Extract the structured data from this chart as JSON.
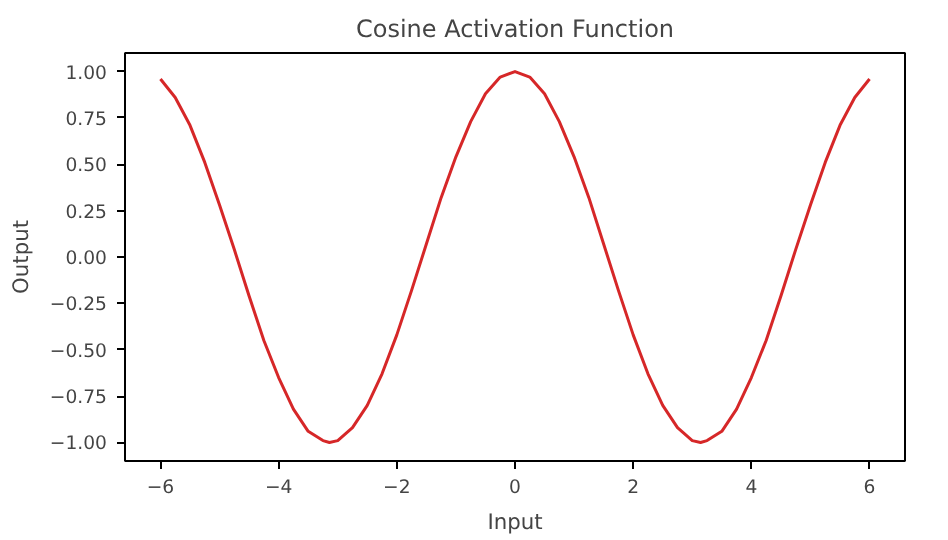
{
  "chart_data": {
    "type": "line",
    "title": "Cosine Activation Function",
    "xlabel": "Input",
    "ylabel": "Output",
    "x": [
      -6,
      -5.75,
      -5.5,
      -5.25,
      -5,
      -4.75,
      -4.5,
      -4.25,
      -4,
      -3.75,
      -3.5,
      -3.25,
      -3.14,
      -3,
      -2.75,
      -2.5,
      -2.25,
      -2,
      -1.75,
      -1.5,
      -1.25,
      -1,
      -0.75,
      -0.5,
      -0.25,
      0,
      0.25,
      0.5,
      0.75,
      1,
      1.25,
      1.5,
      1.75,
      2,
      2.25,
      2.5,
      2.75,
      3,
      3.14,
      3.25,
      3.5,
      3.75,
      4,
      4.25,
      4.5,
      4.75,
      5,
      5.25,
      5.5,
      5.75,
      6
    ],
    "series": [
      {
        "color": "#d62728",
        "values": [
          0.96,
          0.86,
          0.71,
          0.51,
          0.28,
          0.04,
          -0.21,
          -0.45,
          -0.65,
          -0.82,
          -0.94,
          -0.99,
          -1.0,
          -0.99,
          -0.92,
          -0.8,
          -0.63,
          -0.42,
          -0.18,
          0.07,
          0.32,
          0.54,
          0.73,
          0.88,
          0.97,
          1.0,
          0.97,
          0.88,
          0.73,
          0.54,
          0.32,
          0.07,
          -0.18,
          -0.42,
          -0.63,
          -0.8,
          -0.92,
          -0.99,
          -1.0,
          -0.99,
          -0.94,
          -0.82,
          -0.65,
          -0.45,
          -0.21,
          0.04,
          0.28,
          0.51,
          0.71,
          0.86,
          0.96
        ]
      }
    ],
    "xlim": [
      -6.6,
      6.6
    ],
    "ylim": [
      -1.1,
      1.1
    ],
    "xticks": [
      {
        "value": -6,
        "label": "−6"
      },
      {
        "value": -4,
        "label": "−4"
      },
      {
        "value": -2,
        "label": "−2"
      },
      0,
      2,
      4,
      6
    ],
    "yticks": [
      {
        "value": -1,
        "label": "−1.00"
      },
      {
        "value": -0.75,
        "label": "−0.75"
      },
      {
        "value": -0.5,
        "label": "−0.50"
      },
      {
        "value": -0.25,
        "label": "−0.25"
      },
      {
        "value": 0,
        "label": "0.00"
      },
      {
        "value": 0.25,
        "label": "0.25"
      },
      {
        "value": 0.5,
        "label": "0.50"
      },
      {
        "value": 0.75,
        "label": "0.75"
      },
      {
        "value": 1,
        "label": "1.00"
      }
    ],
    "grid": false,
    "marker": "none",
    "line_style": "solid"
  }
}
